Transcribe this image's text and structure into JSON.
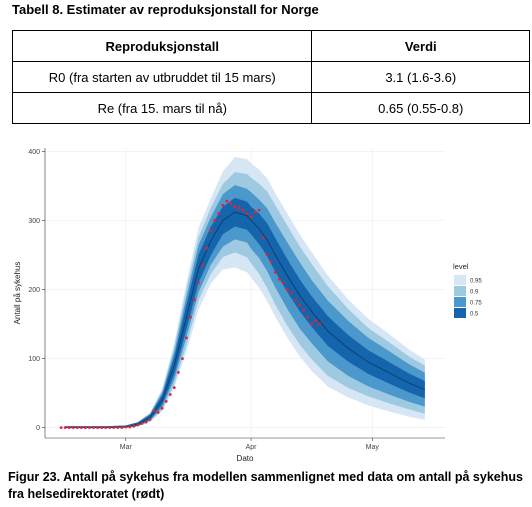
{
  "table": {
    "caption": "Tabell 8. Estimater av reproduksjonstall for Norge",
    "headers": [
      "Reproduksjonstall",
      "Verdi"
    ],
    "rows": [
      [
        "R0 (fra starten av utbruddet til 15 mars)",
        "3.1 (1.6-3.6)"
      ],
      [
        "Re (fra 15. mars til nå)",
        "0.65 (0.55-0.8)"
      ]
    ]
  },
  "chart_data": {
    "type": "line",
    "xlabel": "Dato",
    "ylabel": "Antall på sykehus",
    "x_ticks": [
      "Mar",
      "Apr",
      "May"
    ],
    "y_ticks": [
      0,
      100,
      200,
      300,
      400
    ],
    "ylim": [
      -15,
      405
    ],
    "xlim_days": [
      -20,
      79
    ],
    "legend": {
      "title": "level",
      "placement": "right",
      "entries": [
        {
          "label": "0.95",
          "color": "#d6e6f4"
        },
        {
          "label": "0.9",
          "color": "#9ecae1"
        },
        {
          "label": "0.75",
          "color": "#4b98cd"
        },
        {
          "label": "0.5",
          "color": "#1565ad"
        }
      ]
    },
    "model": {
      "x": [
        -15,
        -10,
        -5,
        0,
        3,
        6,
        9,
        12,
        15,
        18,
        21,
        24,
        27,
        30,
        31,
        33,
        35,
        37,
        40,
        43,
        46,
        50,
        55,
        60,
        65,
        70,
        74
      ],
      "median": [
        0,
        0,
        0,
        1,
        5,
        15,
        40,
        90,
        160,
        230,
        270,
        300,
        312,
        307,
        300,
        288,
        272,
        250,
        220,
        192,
        168,
        140,
        115,
        95,
        80,
        65,
        55
      ],
      "scale_50": [
        0.06,
        0.06,
        0.06,
        0.06,
        0.08,
        0.1,
        0.12,
        0.12,
        0.1,
        0.08,
        0.07,
        0.06,
        0.06,
        0.06,
        0.06,
        0.07,
        0.08,
        0.09,
        0.1,
        0.11,
        0.12,
        0.14,
        0.15,
        0.16,
        0.17,
        0.18,
        0.19
      ],
      "scale_75": [
        0.12,
        0.12,
        0.12,
        0.12,
        0.14,
        0.18,
        0.22,
        0.2,
        0.17,
        0.14,
        0.12,
        0.12,
        0.12,
        0.12,
        0.13,
        0.14,
        0.16,
        0.18,
        0.21,
        0.24,
        0.26,
        0.3,
        0.33,
        0.35,
        0.37,
        0.39,
        0.41
      ],
      "scale_90": [
        0.18,
        0.18,
        0.18,
        0.18,
        0.2,
        0.26,
        0.3,
        0.28,
        0.24,
        0.19,
        0.17,
        0.17,
        0.18,
        0.19,
        0.2,
        0.22,
        0.25,
        0.28,
        0.32,
        0.36,
        0.4,
        0.45,
        0.48,
        0.5,
        0.53,
        0.56,
        0.6
      ],
      "scale_95": [
        0.24,
        0.24,
        0.24,
        0.24,
        0.26,
        0.32,
        0.36,
        0.34,
        0.3,
        0.25,
        0.22,
        0.23,
        0.25,
        0.26,
        0.27,
        0.29,
        0.32,
        0.35,
        0.4,
        0.45,
        0.5,
        0.56,
        0.6,
        0.64,
        0.68,
        0.72,
        0.76
      ]
    },
    "observed": {
      "color": "#e8222b",
      "x": [
        -16,
        -15,
        -14,
        -13,
        -12,
        -11,
        -10,
        -9,
        -8,
        -7,
        -6,
        -5,
        -4,
        -3,
        -2,
        -1,
        0,
        1,
        2,
        3,
        4,
        5,
        6,
        7,
        8,
        9,
        10,
        11,
        12,
        13,
        14,
        15,
        16,
        17,
        18,
        19,
        20,
        21,
        22,
        23,
        24,
        25,
        26,
        27,
        28,
        29,
        30,
        31,
        32,
        33,
        34,
        35,
        36,
        37,
        38,
        39,
        40,
        41,
        42,
        43,
        44,
        45,
        46,
        47,
        48
      ],
      "y": [
        0,
        0,
        0,
        0,
        0,
        0,
        0,
        0,
        0,
        0,
        0,
        0,
        0,
        0,
        0,
        0,
        1,
        1,
        2,
        4,
        6,
        8,
        12,
        25,
        22,
        28,
        38,
        48,
        58,
        80,
        100,
        130,
        160,
        185,
        210,
        235,
        260,
        285,
        300,
        310,
        322,
        328,
        325,
        320,
        318,
        315,
        310,
        305,
        312,
        315,
        275,
        250,
        240,
        225,
        215,
        210,
        200,
        195,
        185,
        178,
        170,
        160,
        150,
        155,
        150
      ]
    }
  },
  "caption": {
    "text": "Figur 23. Antall på sykehus fra modellen sammenlignet med data om antall på sykehus fra helsedirektoratet (rødt)"
  }
}
